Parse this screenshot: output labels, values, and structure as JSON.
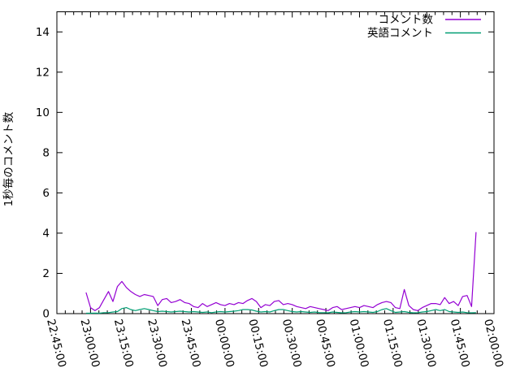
{
  "window": {
    "background": "#ffffff"
  },
  "chart_data": {
    "type": "line",
    "title": "",
    "xlabel": "",
    "ylabel": "1秒毎のコメント数",
    "ylim": [
      0,
      15
    ],
    "y_ticks": [
      0,
      2,
      4,
      6,
      8,
      10,
      12,
      14
    ],
    "x_axis_start": "22:45:00",
    "x_axis_end": "02:00:00",
    "x_total_minutes": 195,
    "x_tick_interval_minutes": 15,
    "x_minor_ticks_per_interval": 4,
    "x_tick_labels": [
      "22:45:00",
      "23:00:00",
      "23:15:00",
      "23:30:00",
      "23:45:00",
      "00:00:00",
      "00:15:00",
      "00:30:00",
      "00:45:00",
      "01:00:00",
      "01:15:00",
      "01:30:00",
      "01:45:00",
      "02:00:00"
    ],
    "grid": false,
    "axis_color": "#000000",
    "legend_position": "top-right-inside",
    "x_offsets_min": [
      13,
      15,
      17,
      19,
      21,
      23,
      25,
      27,
      29,
      31,
      33,
      35,
      37,
      39,
      41,
      43,
      45,
      47,
      49,
      51,
      53,
      55,
      57,
      59,
      61,
      63,
      65,
      67,
      69,
      71,
      73,
      75,
      77,
      79,
      81,
      83,
      85,
      87,
      89,
      91,
      93,
      95,
      97,
      99,
      101,
      103,
      105,
      107,
      109,
      111,
      113,
      115,
      117,
      119,
      121,
      123,
      125,
      127,
      129,
      131,
      133,
      135,
      137,
      139,
      141,
      143,
      145,
      147,
      149,
      151,
      153,
      155,
      157,
      159,
      161,
      163,
      165,
      167,
      169,
      171,
      173,
      175,
      177,
      179,
      181,
      183,
      185,
      187
    ],
    "series": [
      {
        "name": "コメント数",
        "color": "#9400d3",
        "values": [
          1.05,
          0.3,
          0.15,
          0.3,
          0.7,
          1.1,
          0.6,
          1.35,
          1.6,
          1.3,
          1.1,
          0.95,
          0.85,
          0.95,
          0.9,
          0.85,
          0.4,
          0.7,
          0.75,
          0.55,
          0.6,
          0.7,
          0.55,
          0.5,
          0.35,
          0.3,
          0.5,
          0.35,
          0.45,
          0.55,
          0.45,
          0.4,
          0.5,
          0.45,
          0.55,
          0.5,
          0.65,
          0.75,
          0.6,
          0.3,
          0.45,
          0.4,
          0.6,
          0.65,
          0.45,
          0.5,
          0.45,
          0.35,
          0.3,
          0.25,
          0.35,
          0.3,
          0.25,
          0.2,
          0.15,
          0.3,
          0.35,
          0.2,
          0.25,
          0.3,
          0.35,
          0.3,
          0.4,
          0.35,
          0.3,
          0.45,
          0.55,
          0.6,
          0.55,
          0.3,
          0.25,
          1.2,
          0.4,
          0.2,
          0.15,
          0.3,
          0.4,
          0.5,
          0.5,
          0.45,
          0.8,
          0.5,
          0.6,
          0.4,
          0.85,
          0.9,
          0.35,
          4.05
        ]
      },
      {
        "name": "英語コメント",
        "color": "#009e73",
        "values": [
          0.02,
          0.02,
          0.03,
          0.02,
          0.05,
          0.05,
          0.08,
          0.1,
          0.25,
          0.3,
          0.2,
          0.15,
          0.2,
          0.25,
          0.2,
          0.15,
          0.1,
          0.12,
          0.1,
          0.08,
          0.1,
          0.12,
          0.1,
          0.08,
          0.1,
          0.08,
          0.06,
          0.08,
          0.05,
          0.08,
          0.1,
          0.08,
          0.1,
          0.12,
          0.15,
          0.2,
          0.2,
          0.18,
          0.12,
          0.08,
          0.1,
          0.08,
          0.15,
          0.2,
          0.2,
          0.15,
          0.1,
          0.08,
          0.1,
          0.08,
          0.06,
          0.08,
          0.05,
          0.05,
          0.04,
          0.08,
          0.06,
          0.04,
          0.05,
          0.08,
          0.1,
          0.08,
          0.1,
          0.08,
          0.06,
          0.1,
          0.2,
          0.25,
          0.15,
          0.06,
          0.08,
          0.1,
          0.06,
          0.04,
          0.05,
          0.08,
          0.1,
          0.15,
          0.2,
          0.15,
          0.2,
          0.1,
          0.08,
          0.06,
          0.08,
          0.05,
          0.04,
          0.05
        ]
      }
    ]
  }
}
